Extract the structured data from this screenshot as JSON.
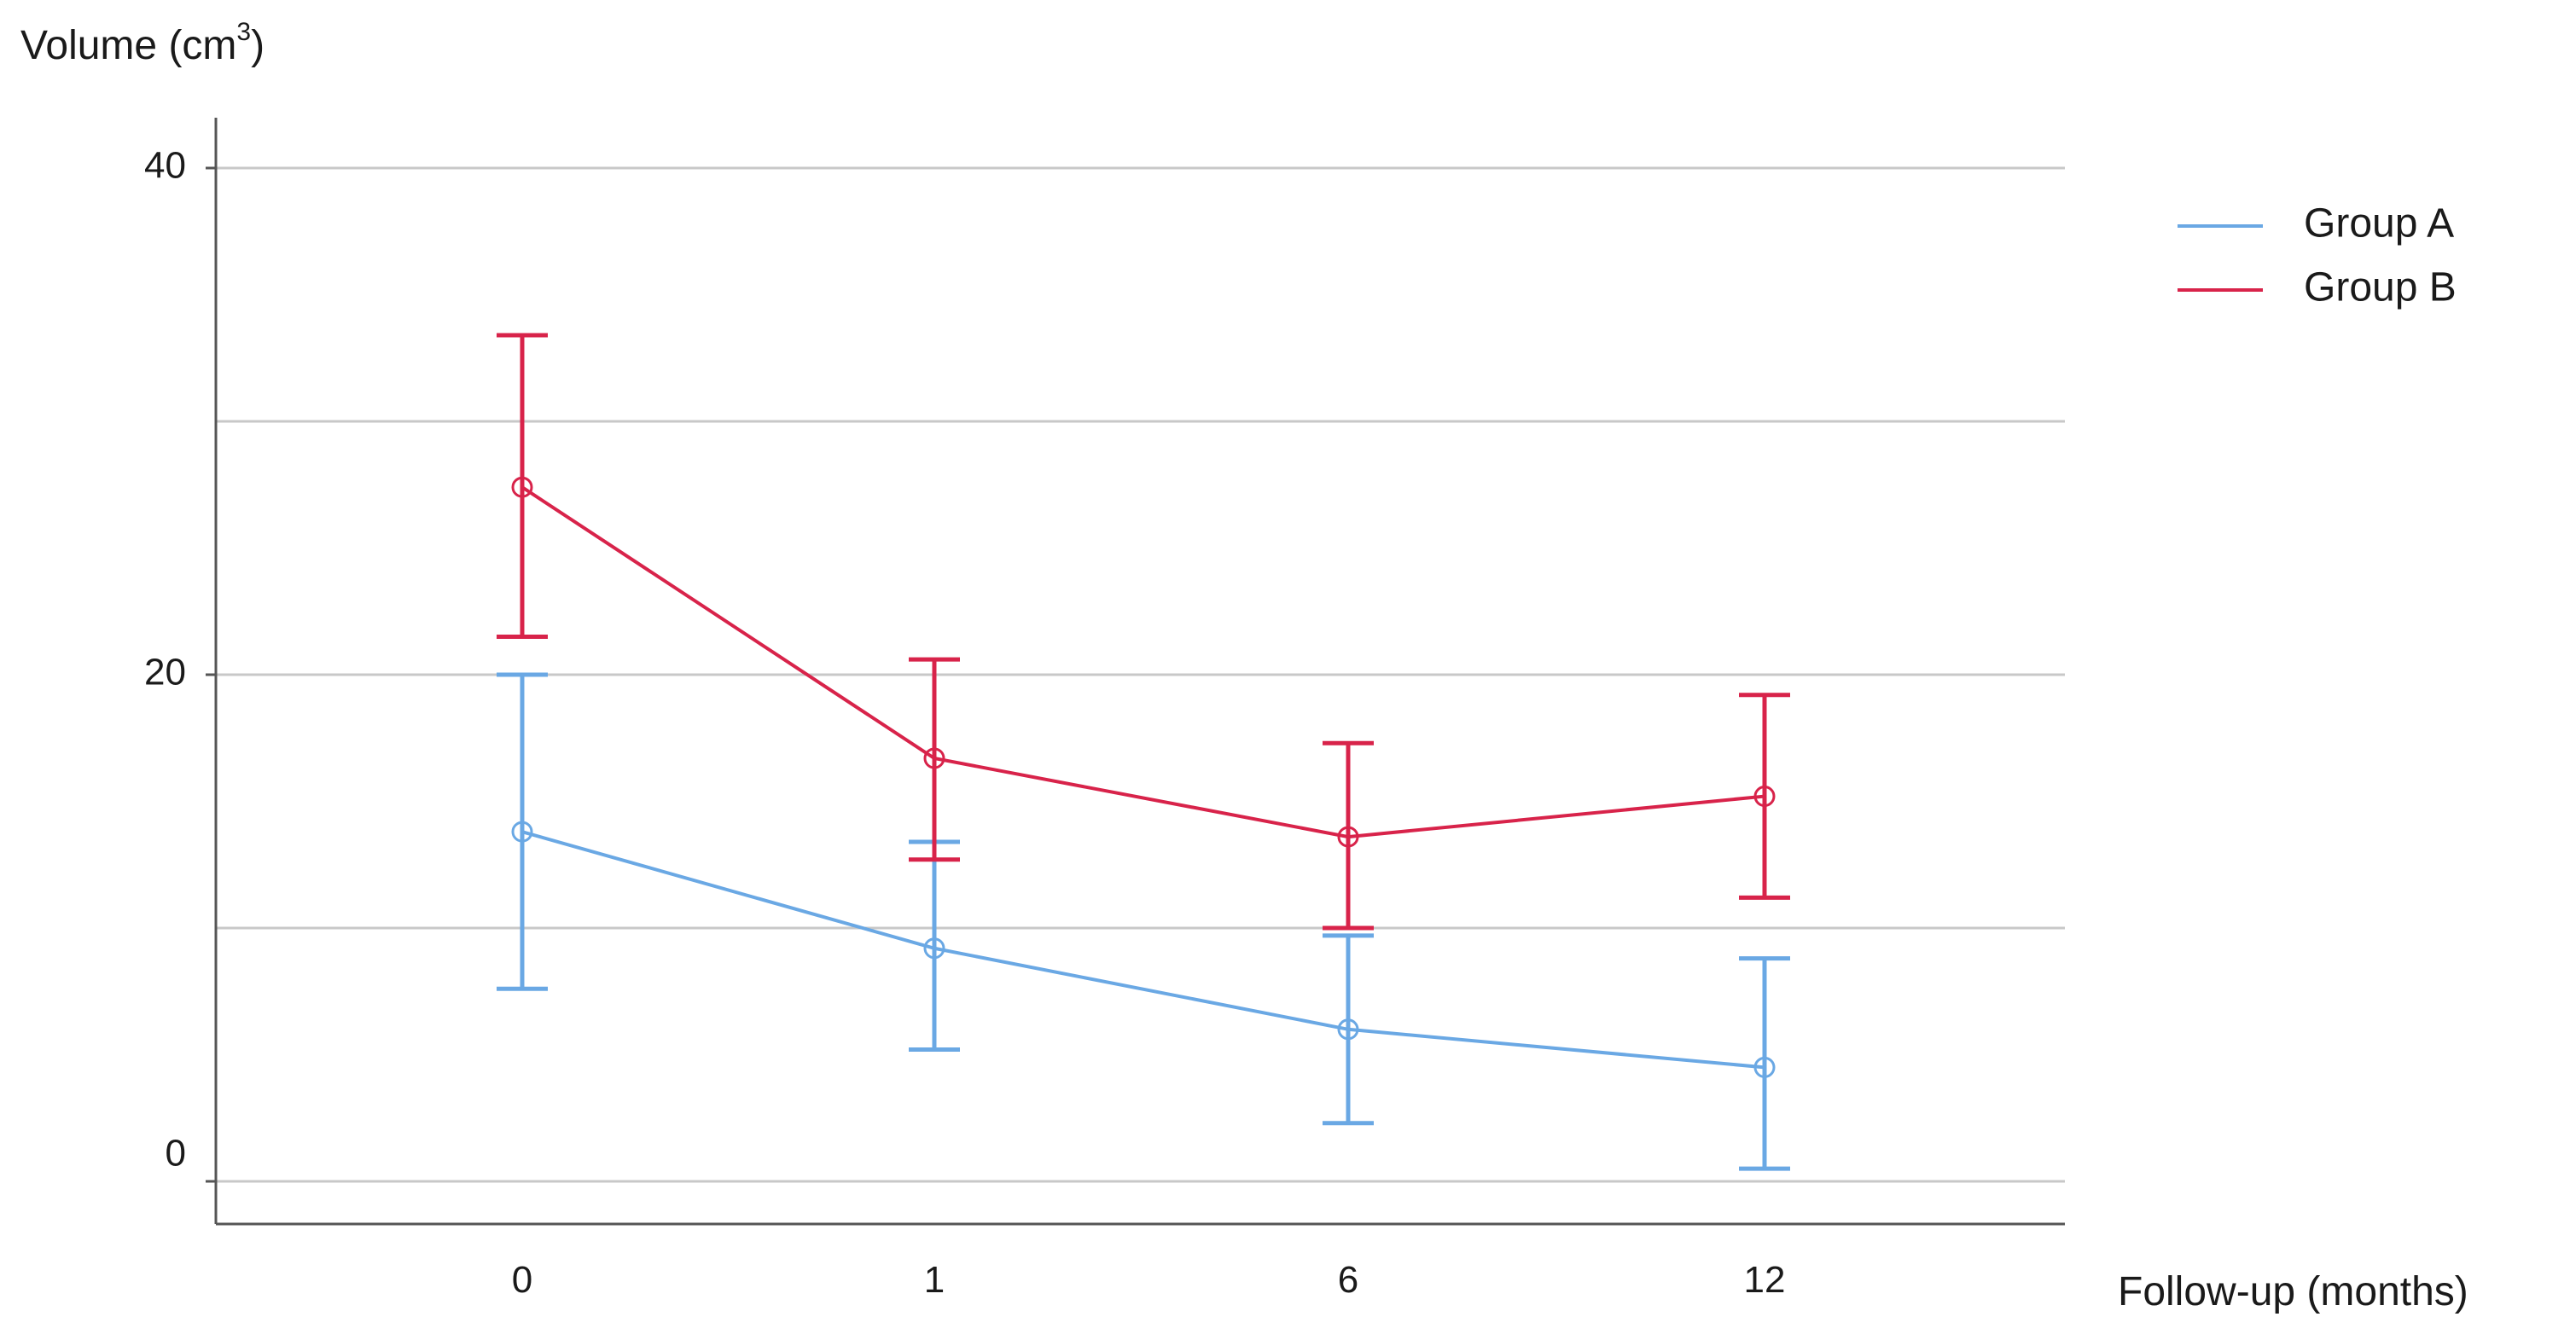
{
  "chart_data": {
    "type": "line",
    "ylabel": {
      "prefix": "Volume (cm",
      "superscript": "3",
      "suffix": ")"
    },
    "xlabel": "Follow-up (months)",
    "categories": [
      "0",
      "1",
      "6",
      "12"
    ],
    "y_ticks": [
      0,
      20,
      40
    ],
    "ylim": [
      -1.6,
      42
    ],
    "grid": true,
    "gridlines": [
      0,
      10,
      20,
      30,
      40
    ],
    "legend_position": "top-right",
    "error_bars": true,
    "series": [
      {
        "name": "Group A",
        "color": "#6aa8e4",
        "values": [
          13.8,
          9.2,
          6.0,
          4.5
        ],
        "lower": [
          7.6,
          5.2,
          2.3,
          0.5
        ],
        "upper": [
          20.0,
          13.4,
          9.7,
          8.8
        ]
      },
      {
        "name": "Group B",
        "color": "#d8234a",
        "values": [
          27.4,
          16.7,
          13.6,
          15.2
        ],
        "lower": [
          21.5,
          12.7,
          10.0,
          11.2
        ],
        "upper": [
          33.4,
          20.6,
          17.3,
          19.2
        ]
      }
    ]
  }
}
